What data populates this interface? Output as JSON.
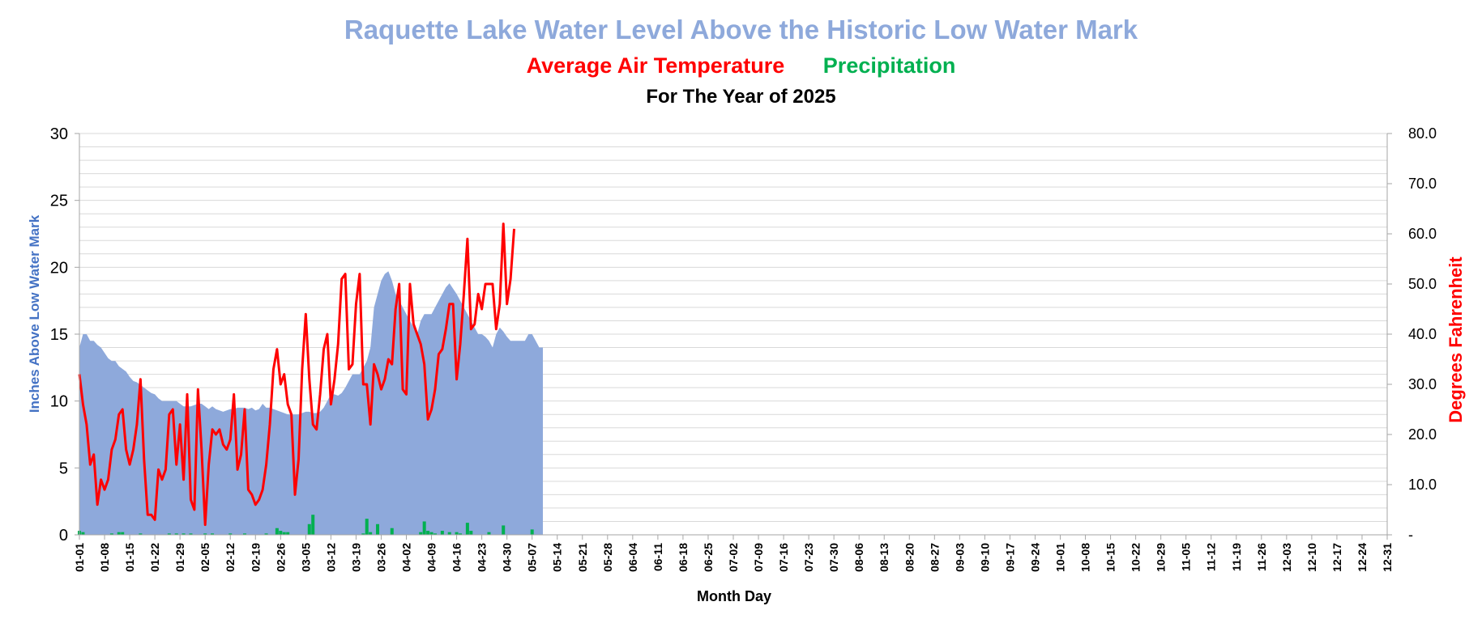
{
  "chart_data": {
    "type": "area",
    "title": "Raquette Lake Water Level Above the Historic Low Water Mark",
    "subtitle_temperature": "Average Air Temperature",
    "subtitle_precipitation": "Precipitation",
    "subtitle_year": "For The Year of 2025",
    "xlabel": "Month Day",
    "ylabel_left": "Inches Above Low Water Mark",
    "ylabel_right": "Degrees Fahrenheit",
    "ylim_left": [
      0,
      30
    ],
    "ylim_right": [
      0,
      80
    ],
    "left_ticks": [
      "0",
      "5",
      "10",
      "15",
      "20",
      "25",
      "30"
    ],
    "right_ticks": [
      "-",
      "10.0",
      "20.0",
      "30.0",
      "40.0",
      "50.0",
      "60.0",
      "70.0",
      "80.0"
    ],
    "x_tick_labels": [
      "01-01",
      "01-08",
      "01-15",
      "01-22",
      "01-29",
      "02-05",
      "02-12",
      "02-19",
      "02-26",
      "03-05",
      "03-12",
      "03-19",
      "03-26",
      "04-02",
      "04-09",
      "04-16",
      "04-23",
      "04-30",
      "05-07",
      "05-14",
      "05-21",
      "05-28",
      "06-04",
      "06-11",
      "06-18",
      "06-25",
      "07-02",
      "07-09",
      "07-16",
      "07-23",
      "07-30",
      "08-06",
      "08-13",
      "08-20",
      "08-27",
      "09-03",
      "09-10",
      "09-17",
      "09-24",
      "10-01",
      "10-08",
      "10-15",
      "10-22",
      "10-29",
      "11-05",
      "11-12",
      "11-19",
      "11-26",
      "12-03",
      "12-10",
      "12-17",
      "12-24",
      "12-31"
    ],
    "grid": true,
    "colors": {
      "water": "#8EA9DB",
      "temperature": "#FF0000",
      "precipitation": "#00B050",
      "title": "#8EA9DB"
    },
    "series": [
      {
        "name": "Water Level",
        "axis": "left",
        "start_day": 1,
        "values": [
          14,
          15,
          15,
          14.5,
          14.5,
          14.2,
          14,
          13.6,
          13.2,
          13,
          13,
          12.6,
          12.4,
          12.2,
          11.8,
          11.5,
          11.4,
          11.2,
          11,
          10.8,
          10.6,
          10.5,
          10.2,
          10,
          10,
          10,
          10,
          10,
          9.8,
          9.6,
          9.6,
          9.6,
          9.7,
          9.8,
          9.8,
          9.6,
          9.4,
          9.6,
          9.4,
          9.3,
          9.2,
          9.3,
          9.4,
          9.4,
          9.5,
          9.5,
          9.5,
          9.4,
          9.5,
          9.3,
          9.4,
          9.8,
          9.5,
          9.5,
          9.4,
          9.3,
          9.2,
          9.1,
          9,
          9,
          9,
          9,
          9.1,
          9.2,
          9.2,
          9.1,
          9.1,
          9.2,
          9.5,
          10,
          10.5,
          10.5,
          10.4,
          10.6,
          11,
          11.5,
          12,
          12,
          12,
          12.5,
          13,
          14,
          17,
          18,
          19,
          19.5,
          19.7,
          19,
          18,
          17.5,
          17,
          16.5,
          16,
          15.5,
          15,
          16,
          16.5,
          16.5,
          16.5,
          17,
          17.5,
          18,
          18.5,
          18.8,
          18.4,
          18,
          17.5,
          17,
          16.5,
          16,
          15.5,
          15,
          15,
          14.8,
          14.5,
          14,
          15,
          15.5,
          15.2,
          14.8,
          14.5,
          14.5,
          14.5,
          14.5,
          14.5,
          15,
          15,
          14.5,
          14,
          14
        ]
      },
      {
        "name": "Average Air Temperature",
        "axis": "right",
        "start_day": 1,
        "values": [
          32,
          26,
          22,
          14,
          16,
          6,
          11,
          9,
          11,
          17,
          19,
          24,
          25,
          17,
          14,
          17,
          22,
          31,
          15,
          4,
          4,
          3,
          13,
          11,
          13,
          24,
          25,
          14,
          22,
          11,
          28,
          7,
          5,
          29,
          17,
          2,
          14,
          21,
          20,
          21,
          18,
          17,
          19,
          28,
          13,
          16,
          25,
          9,
          8,
          6,
          7,
          9,
          14,
          22,
          33,
          37,
          30,
          32,
          26,
          24,
          8,
          15,
          33,
          44,
          31,
          22,
          21,
          28,
          37,
          40,
          26,
          31,
          38,
          51,
          52,
          33,
          34,
          46,
          52,
          30,
          30,
          22,
          34,
          32,
          29,
          31,
          35,
          34,
          45,
          50,
          29,
          28,
          50,
          42,
          40,
          38,
          34,
          23,
          25,
          29,
          36,
          37,
          41,
          46,
          46,
          31,
          38,
          48,
          59,
          41,
          42,
          48,
          45,
          50,
          50,
          50,
          41,
          46,
          62,
          46,
          51,
          61
        ]
      },
      {
        "name": "Precipitation",
        "axis": "left",
        "start_day": 1,
        "values": [
          0.3,
          0.2,
          0,
          0,
          0,
          0,
          0,
          0,
          0,
          0.1,
          0,
          0.2,
          0.2,
          0,
          0,
          0,
          0,
          0.1,
          0,
          0,
          0,
          0,
          0,
          0,
          0,
          0.1,
          0,
          0.1,
          0,
          0.1,
          0,
          0.1,
          0,
          0,
          0,
          0.1,
          0,
          0.1,
          0,
          0,
          0,
          0,
          0.1,
          0,
          0,
          0,
          0.1,
          0,
          0,
          0,
          0,
          0,
          0.1,
          0,
          0,
          0.5,
          0.3,
          0.2,
          0.2,
          0,
          0,
          0,
          0,
          0,
          0.8,
          1.5,
          0,
          0,
          0,
          0,
          0,
          0,
          0,
          0,
          0,
          0,
          0,
          0,
          0,
          0.1,
          1.2,
          0.2,
          0,
          0.8,
          0,
          0,
          0,
          0.5,
          0,
          0,
          0,
          0,
          0,
          0,
          0,
          0.2,
          1,
          0.3,
          0.2,
          0.1,
          0,
          0.3,
          0,
          0.2,
          0,
          0.2,
          0.1,
          0,
          0.9,
          0.3,
          0,
          0,
          0,
          0,
          0.2,
          0,
          0,
          0,
          0.7,
          0,
          0,
          0,
          0,
          0,
          0,
          0,
          0.4,
          0,
          0,
          0,
          0,
          0,
          0,
          0,
          0
        ]
      }
    ]
  }
}
